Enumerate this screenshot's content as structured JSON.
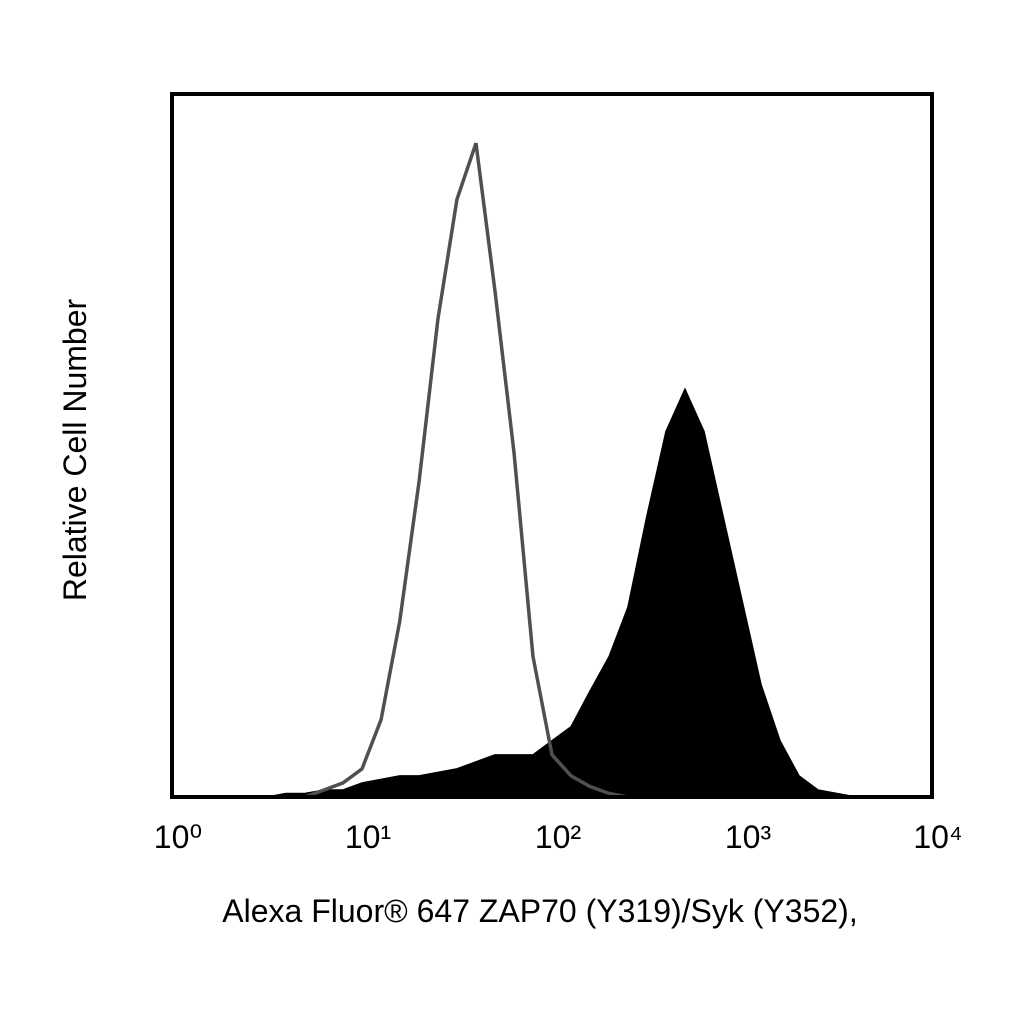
{
  "chart_data": {
    "type": "histogram-overlay",
    "x_label": "Alexa Fluor® 647 ZAP70 (Y319)/Syk (Y352),",
    "y_label": "Relative Cell Number",
    "log_x": true,
    "xlim": [
      1,
      10000
    ],
    "ylim": [
      0,
      100
    ],
    "xticks": [
      {
        "value": 1,
        "label": "10⁰"
      },
      {
        "value": 10,
        "label": "10¹"
      },
      {
        "value": 100,
        "label": "10²"
      },
      {
        "value": 1000,
        "label": "10³"
      },
      {
        "value": 10000,
        "label": "10⁴"
      }
    ],
    "x": [
      1,
      1.26,
      1.58,
      2,
      2.51,
      3.16,
      3.98,
      5.01,
      6.31,
      7.94,
      10,
      12.6,
      15.8,
      20,
      25.1,
      31.6,
      39.8,
      50.1,
      63.1,
      79.4,
      100,
      126,
      158,
      200,
      251,
      316,
      398,
      501,
      631,
      794,
      1000,
      1259,
      1585,
      1995,
      2512,
      3162,
      3981,
      5012,
      6310,
      7943
    ],
    "series": [
      {
        "style": "outline",
        "color": "#505050",
        "values": [
          0,
          0,
          0,
          0,
          0,
          0,
          0,
          0,
          1,
          2,
          4,
          11,
          25,
          45,
          68,
          85,
          93,
          72,
          49,
          20,
          6,
          3,
          1.5,
          0.5,
          0,
          0,
          0,
          0,
          0,
          0,
          0,
          0,
          0,
          0,
          0,
          0,
          0,
          0,
          0,
          0
        ]
      },
      {
        "style": "filled",
        "color": "#000000",
        "values": [
          0,
          0,
          0,
          0,
          0,
          0,
          0.5,
          0.5,
          1,
          1,
          2,
          2.5,
          3,
          3,
          3.5,
          4,
          5,
          6,
          6,
          6,
          8,
          10,
          15,
          20,
          27,
          40,
          52,
          58,
          52,
          40,
          28,
          16,
          8,
          3,
          1,
          0.5,
          0,
          0,
          0,
          0
        ]
      }
    ]
  }
}
